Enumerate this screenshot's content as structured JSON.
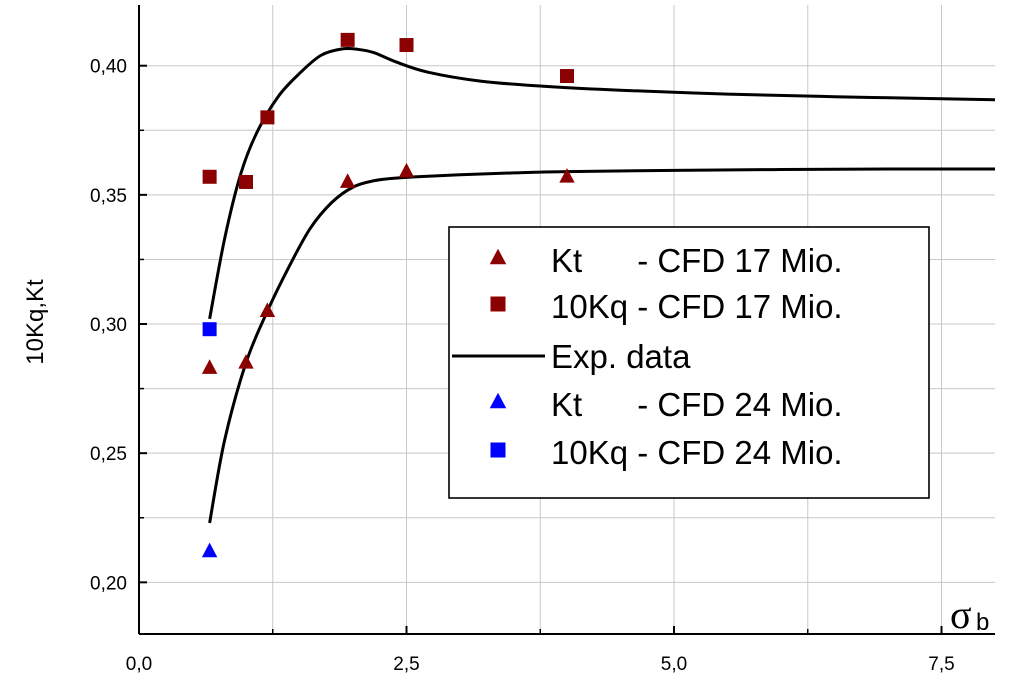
{
  "chart_data": {
    "type": "scatter",
    "xlabel": "σ",
    "xlabel_sub": "b",
    "ylabel": "10Kq,Kt",
    "xlim": [
      0,
      8.0
    ],
    "ylim": [
      0.18,
      0.4235
    ],
    "x_ticks": [
      0,
      2.5,
      5.0,
      7.5
    ],
    "x_tick_labels": [
      "0,0",
      "2,5",
      "5,0",
      "7,5"
    ],
    "y_ticks": [
      0.2,
      0.25,
      0.3,
      0.35,
      0.4
    ],
    "y_tick_labels": [
      "0,20",
      "0,25",
      "0,30",
      "0,35",
      "0,40"
    ],
    "grid": true,
    "legend_position": "center-right",
    "series": [
      {
        "name": "Kt      - CFD 17 Mio.",
        "marker": "triangle",
        "color": "#8B0000",
        "x": [
          0.66,
          1.0,
          1.2,
          1.95,
          2.5,
          4.0
        ],
        "y": [
          0.283,
          0.285,
          0.305,
          0.355,
          0.359,
          0.357
        ]
      },
      {
        "name": "10Kq - CFD 17 Mio.",
        "marker": "square",
        "color": "#8B0000",
        "x": [
          0.66,
          1.0,
          1.2,
          1.95,
          2.5,
          4.0
        ],
        "y": [
          0.357,
          0.355,
          0.38,
          0.41,
          0.408,
          0.396
        ]
      },
      {
        "name": "Exp. data",
        "marker": "line",
        "color": "#000000",
        "curves": [
          {
            "x": [
              0.66,
              0.8,
              0.95,
              1.1,
              1.3,
              1.5,
              1.7,
              1.9,
              2.05,
              2.2,
              2.4,
              2.7,
              3.2,
              3.8,
              4.5,
              5.5,
              6.5,
              7.5,
              8.0
            ],
            "y": [
              0.302,
              0.333,
              0.358,
              0.374,
              0.388,
              0.397,
              0.404,
              0.4065,
              0.4063,
              0.405,
              0.4015,
              0.3975,
              0.394,
              0.392,
              0.3905,
              0.389,
              0.388,
              0.3872,
              0.3868
            ]
          },
          {
            "x": [
              0.66,
              0.8,
              1.0,
              1.2,
              1.4,
              1.6,
              1.8,
              2.0,
              2.2,
              2.4,
              2.6,
              3.0,
              3.5,
              4.0,
              5.0,
              6.0,
              7.0,
              8.0
            ],
            "y": [
              0.223,
              0.255,
              0.285,
              0.305,
              0.322,
              0.337,
              0.347,
              0.353,
              0.3555,
              0.3565,
              0.357,
              0.3578,
              0.3585,
              0.359,
              0.3595,
              0.3598,
              0.36,
              0.36
            ]
          }
        ]
      },
      {
        "name": "Kt      - CFD 24 Mio.",
        "marker": "triangle",
        "color": "#0000FF",
        "x": [
          0.66
        ],
        "y": [
          0.212
        ]
      },
      {
        "name": "10Kq - CFD 24 Mio.",
        "marker": "square",
        "color": "#0000FF",
        "x": [
          0.66
        ],
        "y": [
          0.298
        ]
      }
    ]
  }
}
